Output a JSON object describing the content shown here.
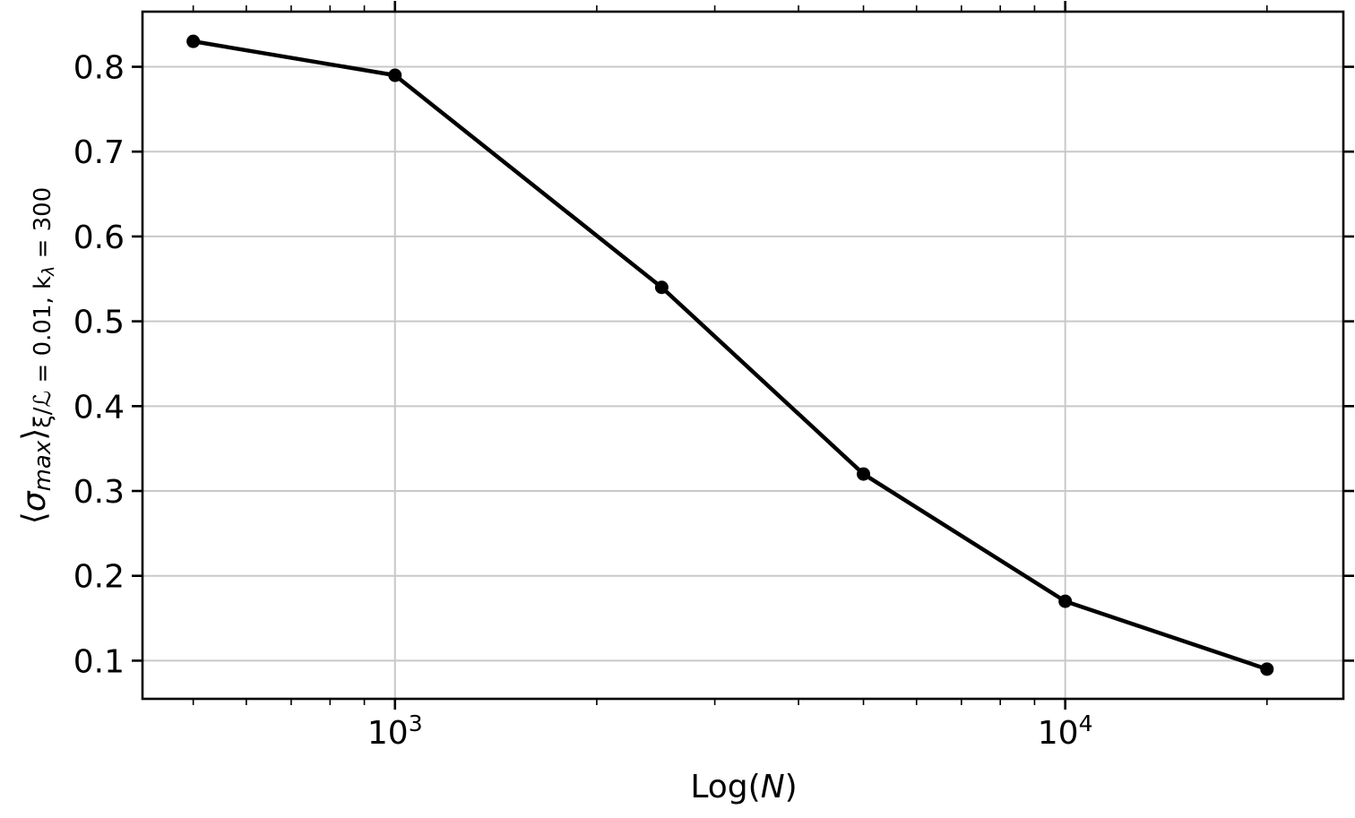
{
  "chart_data": {
    "type": "line",
    "title": "",
    "xlabel": {
      "main": "Log(",
      "var": "N",
      "close": ")"
    },
    "ylabel": {
      "open": "⟨",
      "sigma": "σ",
      "sigma_sub": "max",
      "close": "⟩",
      "subscript": "ξ/ℒ = 0.01, k",
      "lambda": "λ",
      "tail": " = 300"
    },
    "x_scale": "log",
    "xlim": [
      420,
      26000
    ],
    "ylim": [
      0.055,
      0.865
    ],
    "x_ticks": [
      {
        "value": 1000,
        "base": "10",
        "exp": "3"
      },
      {
        "value": 10000,
        "base": "10",
        "exp": "4"
      }
    ],
    "y_ticks": [
      {
        "value": 0.1,
        "label": "0.1"
      },
      {
        "value": 0.2,
        "label": "0.2"
      },
      {
        "value": 0.3,
        "label": "0.3"
      },
      {
        "value": 0.4,
        "label": "0.4"
      },
      {
        "value": 0.5,
        "label": "0.5"
      },
      {
        "value": 0.6,
        "label": "0.6"
      },
      {
        "value": 0.7,
        "label": "0.7"
      },
      {
        "value": 0.8,
        "label": "0.8"
      }
    ],
    "grid": true,
    "series": [
      {
        "color": "#000000",
        "marker": "circle",
        "x": [
          500,
          1000,
          2500,
          5000,
          10000,
          20000
        ],
        "y": [
          0.83,
          0.79,
          0.54,
          0.32,
          0.17,
          0.09
        ]
      }
    ]
  }
}
